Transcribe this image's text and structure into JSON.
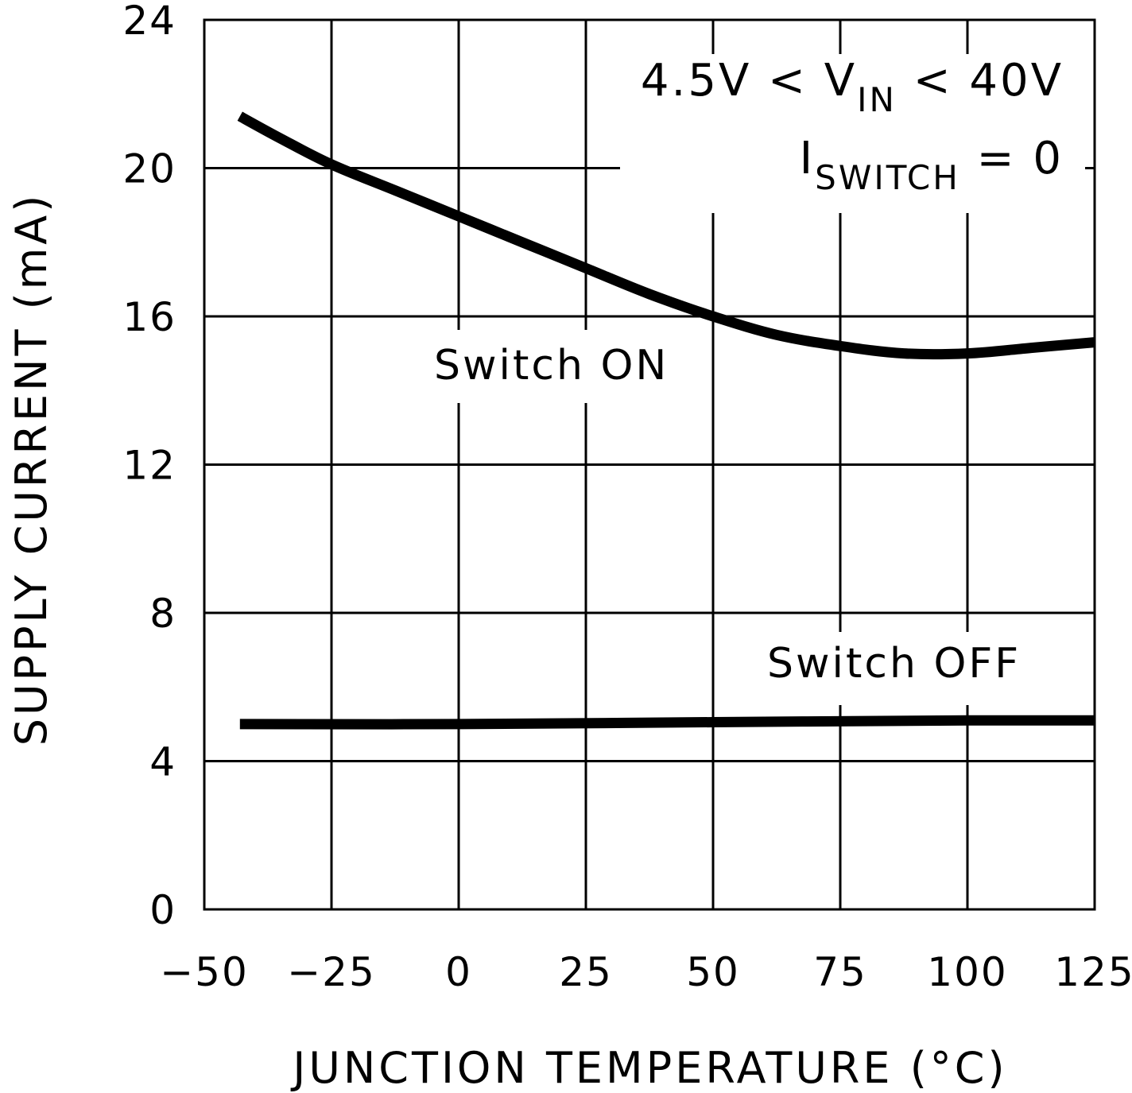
{
  "chart_data": {
    "type": "line",
    "xlabel": "JUNCTION TEMPERATURE (°C)",
    "ylabel": "SUPPLY CURRENT (mA)",
    "xlim": [
      -50,
      125
    ],
    "ylim": [
      0,
      24
    ],
    "xticks": [
      -50,
      -25,
      0,
      25,
      50,
      75,
      100,
      125
    ],
    "yticks": [
      0,
      4,
      8,
      12,
      16,
      20,
      24
    ],
    "xtick_labels": [
      "−50",
      "−25",
      "0",
      "25",
      "50",
      "75",
      "100",
      "125"
    ],
    "ytick_labels": [
      "0",
      "4",
      "8",
      "12",
      "16",
      "20",
      "24"
    ],
    "grid": true,
    "conditions": {
      "line1": {
        "a": "4.5V < V",
        "sub": "IN",
        "b": " < 40V"
      },
      "line2": {
        "a": "I",
        "sub": "SWITCH",
        "b": " = 0"
      }
    },
    "series": [
      {
        "name": "Switch ON",
        "x": [
          -43,
          -35,
          -25,
          -12.5,
          0,
          12.5,
          25,
          37.5,
          50,
          62.5,
          75,
          87.5,
          100,
          112.5,
          125
        ],
        "y": [
          21.4,
          20.8,
          20.1,
          19.4,
          18.7,
          18.0,
          17.3,
          16.6,
          16.0,
          15.5,
          15.2,
          15.0,
          15.0,
          15.15,
          15.3
        ]
      },
      {
        "name": "Switch OFF",
        "x": [
          -43,
          0,
          50,
          100,
          125
        ],
        "y": [
          5.0,
          5.0,
          5.05,
          5.1,
          5.1
        ]
      }
    ]
  }
}
